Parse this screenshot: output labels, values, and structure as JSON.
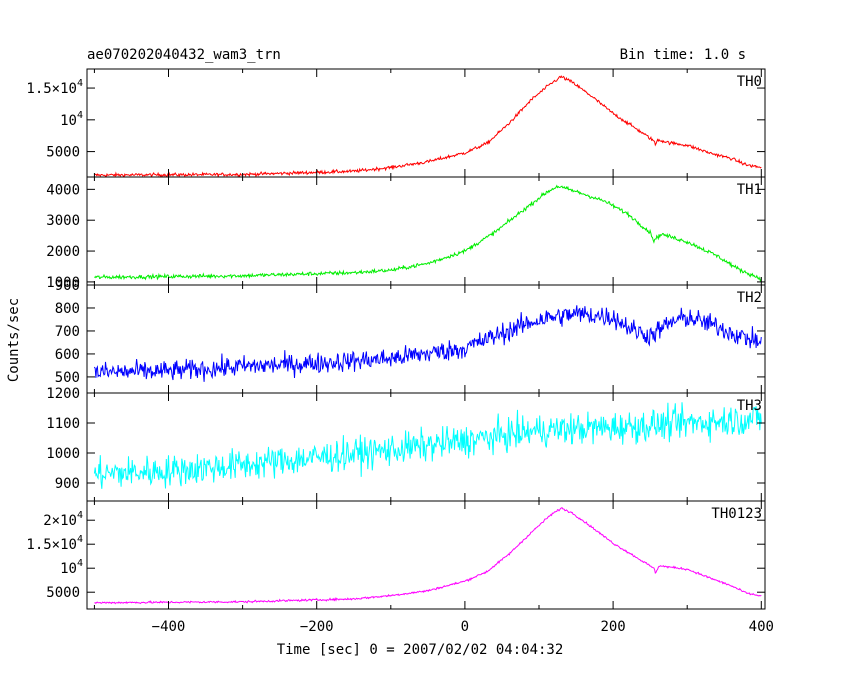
{
  "header": {
    "title": "ae070202040432_wam3_trn",
    "bin_time": "Bin time: 1.0 s"
  },
  "chart_data": {
    "type": "line",
    "xlabel": "Time [sec] 0 = 2007/02/02 04:04:32",
    "ylabel": "Counts/sec",
    "xlim": [
      -510,
      405
    ],
    "x_ticks": [
      -400,
      -200,
      0,
      200,
      400
    ],
    "x_tick_labels": [
      "−400",
      "−200",
      "0",
      "200",
      "400"
    ],
    "panels": [
      {
        "name": "TH0",
        "color": "#ff0000",
        "ylim": [
          1000,
          18000
        ],
        "y_ticks": [
          {
            "v": 5000,
            "label": "5000"
          },
          {
            "v": 10000,
            "m": "10",
            "e": "4"
          },
          {
            "v": 15000,
            "m": "1.5×10",
            "e": "4"
          }
        ],
        "noise": 180,
        "points": [
          [
            -500,
            1300
          ],
          [
            -300,
            1400
          ],
          [
            -150,
            1900
          ],
          [
            -100,
            2500
          ],
          [
            -50,
            3400
          ],
          [
            0,
            4800
          ],
          [
            30,
            6300
          ],
          [
            60,
            9500
          ],
          [
            90,
            13200
          ],
          [
            115,
            15600
          ],
          [
            130,
            16800
          ],
          [
            145,
            15900
          ],
          [
            170,
            13800
          ],
          [
            200,
            11000
          ],
          [
            230,
            8700
          ],
          [
            255,
            6700
          ],
          [
            257,
            6000
          ],
          [
            260,
            6900
          ],
          [
            275,
            6400
          ],
          [
            300,
            6000
          ],
          [
            330,
            4800
          ],
          [
            360,
            3900
          ],
          [
            380,
            2900
          ],
          [
            400,
            2500
          ]
        ]
      },
      {
        "name": "TH1",
        "color": "#00ee00",
        "ylim": [
          900,
          4400
        ],
        "y_ticks": [
          {
            "v": 1000,
            "label": "1000"
          },
          {
            "v": 2000,
            "label": "2000"
          },
          {
            "v": 3000,
            "label": "3000"
          },
          {
            "v": 4000,
            "label": "4000"
          }
        ],
        "noise": 45,
        "points": [
          [
            -500,
            1150
          ],
          [
            -300,
            1200
          ],
          [
            -150,
            1300
          ],
          [
            -100,
            1380
          ],
          [
            -50,
            1600
          ],
          [
            0,
            2000
          ],
          [
            40,
            2600
          ],
          [
            80,
            3350
          ],
          [
            110,
            3900
          ],
          [
            125,
            4100
          ],
          [
            140,
            4000
          ],
          [
            160,
            3850
          ],
          [
            190,
            3600
          ],
          [
            220,
            3200
          ],
          [
            250,
            2600
          ],
          [
            255,
            2350
          ],
          [
            265,
            2550
          ],
          [
            300,
            2300
          ],
          [
            340,
            1850
          ],
          [
            370,
            1400
          ],
          [
            400,
            1100
          ]
        ]
      },
      {
        "name": "TH2",
        "color": "#0000ff",
        "ylim": [
          430,
          900
        ],
        "y_ticks": [
          {
            "v": 500,
            "label": "500"
          },
          {
            "v": 600,
            "label": "600"
          },
          {
            "v": 700,
            "label": "700"
          },
          {
            "v": 800,
            "label": "800"
          },
          {
            "v": 900,
            "label": "900"
          }
        ],
        "noise": 32,
        "points": [
          [
            -500,
            520
          ],
          [
            -400,
            525
          ],
          [
            -300,
            545
          ],
          [
            -200,
            560
          ],
          [
            -100,
            580
          ],
          [
            0,
            625
          ],
          [
            50,
            690
          ],
          [
            100,
            750
          ],
          [
            150,
            775
          ],
          [
            200,
            760
          ],
          [
            230,
            700
          ],
          [
            250,
            680
          ],
          [
            280,
            740
          ],
          [
            300,
            760
          ],
          [
            340,
            720
          ],
          [
            370,
            680
          ],
          [
            400,
            650
          ]
        ]
      },
      {
        "name": "TH3",
        "color": "#00ffff",
        "ylim": [
          840,
          1200
        ],
        "y_ticks": [
          {
            "v": 900,
            "label": "900"
          },
          {
            "v": 1000,
            "label": "1000"
          },
          {
            "v": 1100,
            "label": "1100"
          },
          {
            "v": 1200,
            "label": "1200"
          }
        ],
        "noise": 38,
        "points": [
          [
            -500,
            930
          ],
          [
            -400,
            940
          ],
          [
            -300,
            960
          ],
          [
            -200,
            985
          ],
          [
            -100,
            1010
          ],
          [
            0,
            1040
          ],
          [
            100,
            1075
          ],
          [
            200,
            1085
          ],
          [
            300,
            1100
          ],
          [
            400,
            1115
          ]
        ]
      },
      {
        "name": "TH0123",
        "color": "#ff00ff",
        "ylim": [
          1500,
          24000
        ],
        "y_ticks": [
          {
            "v": 5000,
            "label": "5000"
          },
          {
            "v": 10000,
            "m": "10",
            "e": "4"
          },
          {
            "v": 15000,
            "m": "1.5×10",
            "e": "4"
          },
          {
            "v": 20000,
            "m": "2×10",
            "e": "4"
          }
        ],
        "noise": 150,
        "points": [
          [
            -500,
            2800
          ],
          [
            -300,
            3000
          ],
          [
            -150,
            3600
          ],
          [
            -100,
            4300
          ],
          [
            -50,
            5300
          ],
          [
            0,
            7300
          ],
          [
            30,
            9300
          ],
          [
            60,
            13000
          ],
          [
            90,
            17500
          ],
          [
            115,
            21000
          ],
          [
            130,
            22500
          ],
          [
            145,
            21500
          ],
          [
            170,
            18700
          ],
          [
            200,
            15200
          ],
          [
            230,
            12400
          ],
          [
            255,
            10000
          ],
          [
            257,
            9000
          ],
          [
            262,
            10500
          ],
          [
            300,
            9800
          ],
          [
            330,
            8000
          ],
          [
            360,
            6300
          ],
          [
            380,
            4800
          ],
          [
            400,
            4200
          ]
        ]
      }
    ]
  }
}
